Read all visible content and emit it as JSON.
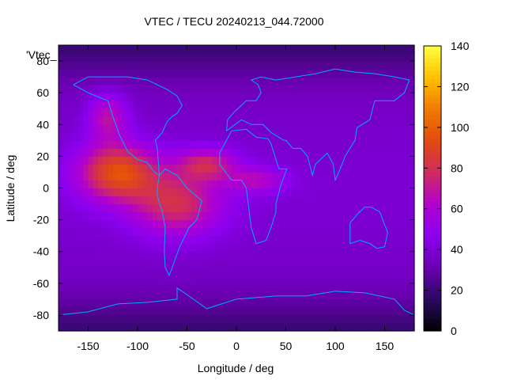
{
  "chart_data": {
    "type": "heatmap",
    "title": "VTEC / TECU 20240213_044.72000",
    "xlabel": "Longitude / deg",
    "ylabel": "Latitude / deg",
    "key_label": "'Vtec_",
    "xlim": [
      -180,
      180
    ],
    "ylim": [
      -90,
      90
    ],
    "xticks": [
      -150,
      -100,
      -50,
      0,
      50,
      100,
      150
    ],
    "yticks": [
      -80,
      -60,
      -40,
      -20,
      0,
      20,
      40,
      60,
      80
    ],
    "colorbar": {
      "range": [
        0,
        140
      ],
      "ticks": [
        0,
        20,
        40,
        60,
        80,
        100,
        120,
        140
      ],
      "colors": [
        "#000000",
        "#2a0a60",
        "#6a00b0",
        "#8b00ee",
        "#b000d0",
        "#d02a60",
        "#e04a10",
        "#f07a00",
        "#ffc000",
        "#ffff40"
      ]
    },
    "coastline_color": "#00aaff",
    "regions": [
      {
        "lon": -120,
        "lat": 10,
        "sigma_lon": 40,
        "sigma_lat": 18,
        "amp": 55
      },
      {
        "lon": -60,
        "lat": -10,
        "sigma_lon": 45,
        "sigma_lat": 20,
        "amp": 40
      },
      {
        "lon": -30,
        "lat": 15,
        "sigma_lon": 30,
        "sigma_lat": 10,
        "amp": 35
      },
      {
        "lon": 20,
        "lat": 5,
        "sigma_lon": 30,
        "sigma_lat": 8,
        "amp": 25
      },
      {
        "lon": -130,
        "lat": 45,
        "sigma_lon": 20,
        "sigma_lat": 15,
        "amp": 30
      }
    ],
    "background_value": 30
  }
}
